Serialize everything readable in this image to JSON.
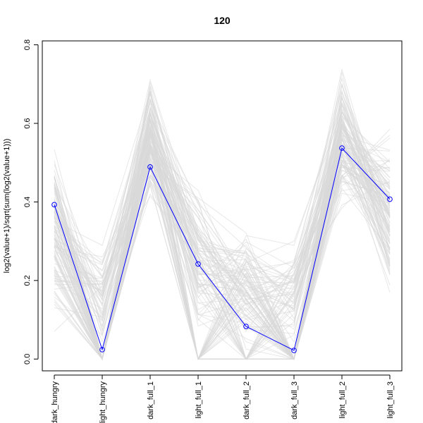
{
  "chart_data": {
    "type": "line",
    "title": "120",
    "xlabel": "",
    "ylabel": "log2(value+1)/sqrt(sum(log2(value+1)))",
    "categories": [
      "dark_hungry",
      "light_hungry",
      "dark_full_1",
      "light_full_1",
      "dark_full_2",
      "dark_full_3",
      "light_full_2",
      "light_full_3"
    ],
    "ylim": [
      -0.03,
      0.81
    ],
    "yticks": [
      0.0,
      0.2,
      0.4,
      0.6,
      0.8
    ],
    "ytick_labels": [
      "0.0",
      "0.2",
      "0.4",
      "0.6",
      "0.8"
    ],
    "grid": false,
    "legend": "none",
    "background_series": {
      "count": 120,
      "color": "#d8d8d8",
      "ranges": [
        [
          0.04,
          0.6
        ],
        [
          0.0,
          0.32
        ],
        [
          0.34,
          0.76
        ],
        [
          0.0,
          0.52
        ],
        [
          0.0,
          0.38
        ],
        [
          0.0,
          0.33
        ],
        [
          0.35,
          0.78
        ],
        [
          0.12,
          0.62
        ]
      ]
    },
    "series": [
      {
        "color": "#0000ff",
        "marker": "open-circle",
        "values": [
          0.393,
          0.024,
          0.489,
          0.242,
          0.083,
          0.022,
          0.537,
          0.407
        ]
      }
    ]
  }
}
